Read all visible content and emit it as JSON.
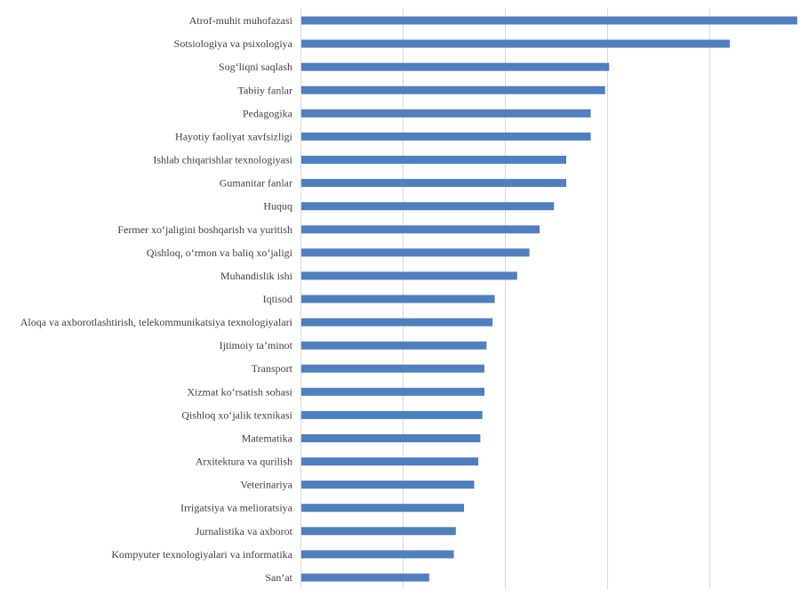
{
  "chart_data": {
    "type": "bar",
    "orientation": "horizontal",
    "title": "",
    "xlabel": "",
    "ylabel": "",
    "x_tick_labels_shown": false,
    "grid": true,
    "legend": "none",
    "bar_color": "#4f7fbf",
    "xlim": [
      0,
      2.4
    ],
    "categories": [
      "Atrof-muhit muhofazasi",
      "Sotsiologiya va psixologiya",
      "Sog‘liqni saqlash",
      "Tabiiy fanlar",
      "Pedagogika",
      "Hayotiy faoliyat xavfsizligi",
      "Ishlab chiqarishlar texnologiyasi",
      "Gumanitar fanlar",
      "Huquq",
      "Fermer xo‘jaligini boshqarish va yuritish",
      "Qishloq, o‘rmon va baliq xo‘jaligi",
      "Muhandislik ishi",
      "Iqtisod",
      "Aloqa va axborotlashtirish, telekommunikatsiya texnologiyalari",
      "Ijtimoiy ta’minot",
      "Transport",
      "Xizmat ko‘rsatish sohasi",
      "Qishloq xo‘jalik texnikasi",
      "Matematika",
      "Arxitektura va qurilish",
      "Veterinariya",
      "Irrigatsiya va melioratsiya",
      "Jurnalistika va axborot",
      "Kompyuter texnologiyalari va informatika",
      "San’at"
    ],
    "values": [
      2.43,
      2.1,
      1.51,
      1.49,
      1.42,
      1.42,
      1.3,
      1.3,
      1.24,
      1.17,
      1.12,
      1.06,
      0.95,
      0.94,
      0.91,
      0.9,
      0.9,
      0.89,
      0.88,
      0.87,
      0.85,
      0.8,
      0.76,
      0.75,
      0.63
    ]
  }
}
